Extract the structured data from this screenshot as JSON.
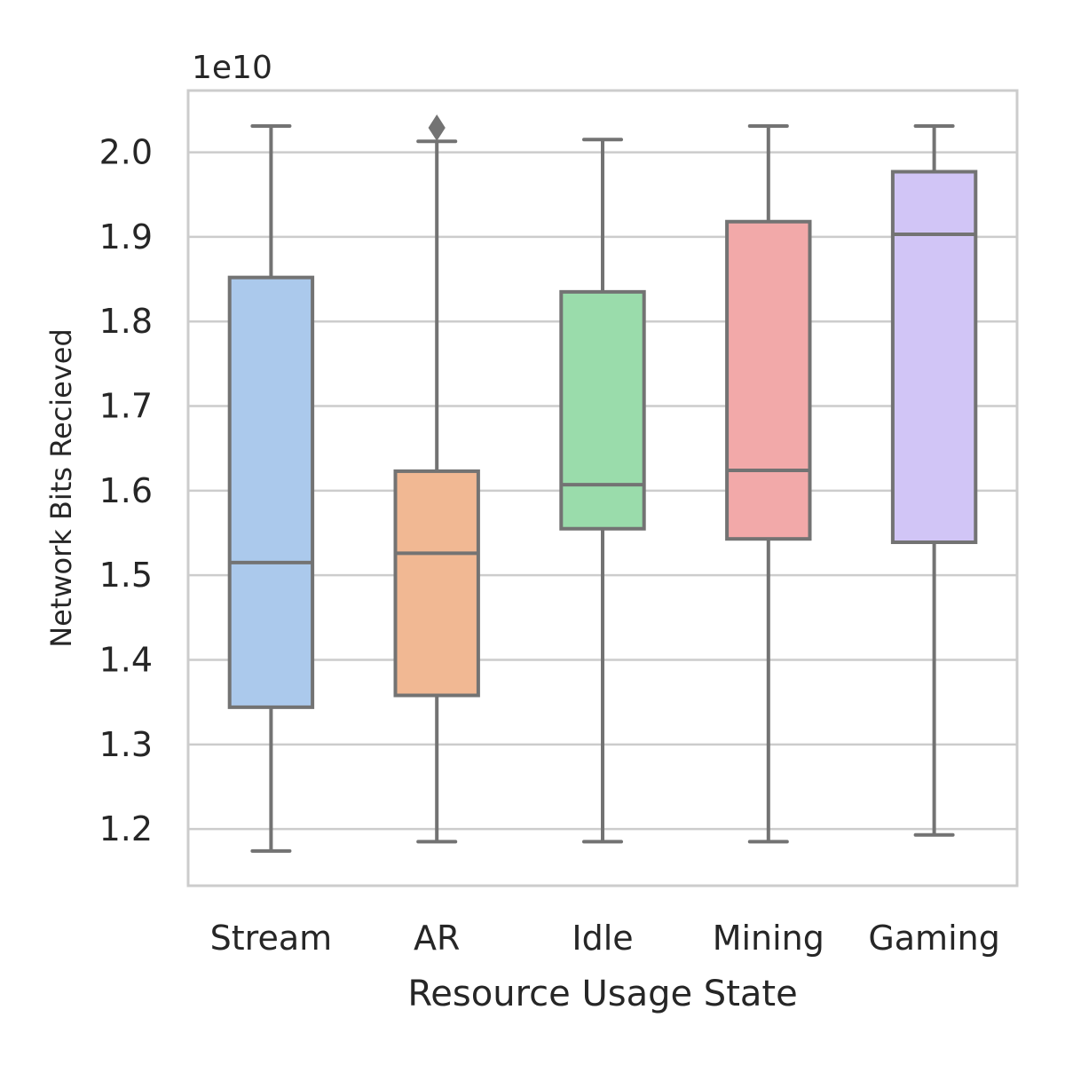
{
  "chart_data": {
    "type": "box",
    "title": "",
    "xlabel": "Resource Usage State",
    "ylabel": "Network Bits Recieved",
    "y_offset_label": "1e10",
    "y_scale_factor": 10000000000,
    "ylim": [
      1.133,
      2.073
    ],
    "yticks": [
      1.2,
      1.3,
      1.4,
      1.5,
      1.6,
      1.7,
      1.8,
      1.9,
      2.0
    ],
    "ytick_labels": [
      "1.2",
      "1.3",
      "1.4",
      "1.5",
      "1.6",
      "1.7",
      "1.8",
      "1.9",
      "2.0"
    ],
    "grid": "horizontal",
    "categories": [
      "Stream",
      "AR",
      "Idle",
      "Mining",
      "Gaming"
    ],
    "boxes": [
      {
        "category": "Stream",
        "whisker_low": 1.174,
        "q1": 1.344,
        "median": 1.515,
        "q3": 1.852,
        "whisker_high": 2.031,
        "outliers": [],
        "color": "#abc9ec"
      },
      {
        "category": "AR",
        "whisker_low": 1.185,
        "q1": 1.358,
        "median": 1.526,
        "q3": 1.623,
        "whisker_high": 2.013,
        "outliers": [
          2.029
        ],
        "color": "#f1b893"
      },
      {
        "category": "Idle",
        "whisker_low": 1.185,
        "q1": 1.555,
        "median": 1.607,
        "q3": 1.835,
        "whisker_high": 2.015,
        "outliers": [],
        "color": "#9adcab"
      },
      {
        "category": "Mining",
        "whisker_low": 1.185,
        "q1": 1.543,
        "median": 1.624,
        "q3": 1.918,
        "whisker_high": 2.031,
        "outliers": [],
        "color": "#f2a9a9"
      },
      {
        "category": "Gaming",
        "whisker_low": 1.193,
        "q1": 1.539,
        "median": 1.903,
        "q3": 1.977,
        "whisker_high": 2.031,
        "outliers": [],
        "color": "#d1c5f6"
      }
    ],
    "line_color": "#737373",
    "grid_color": "#cccccc"
  }
}
